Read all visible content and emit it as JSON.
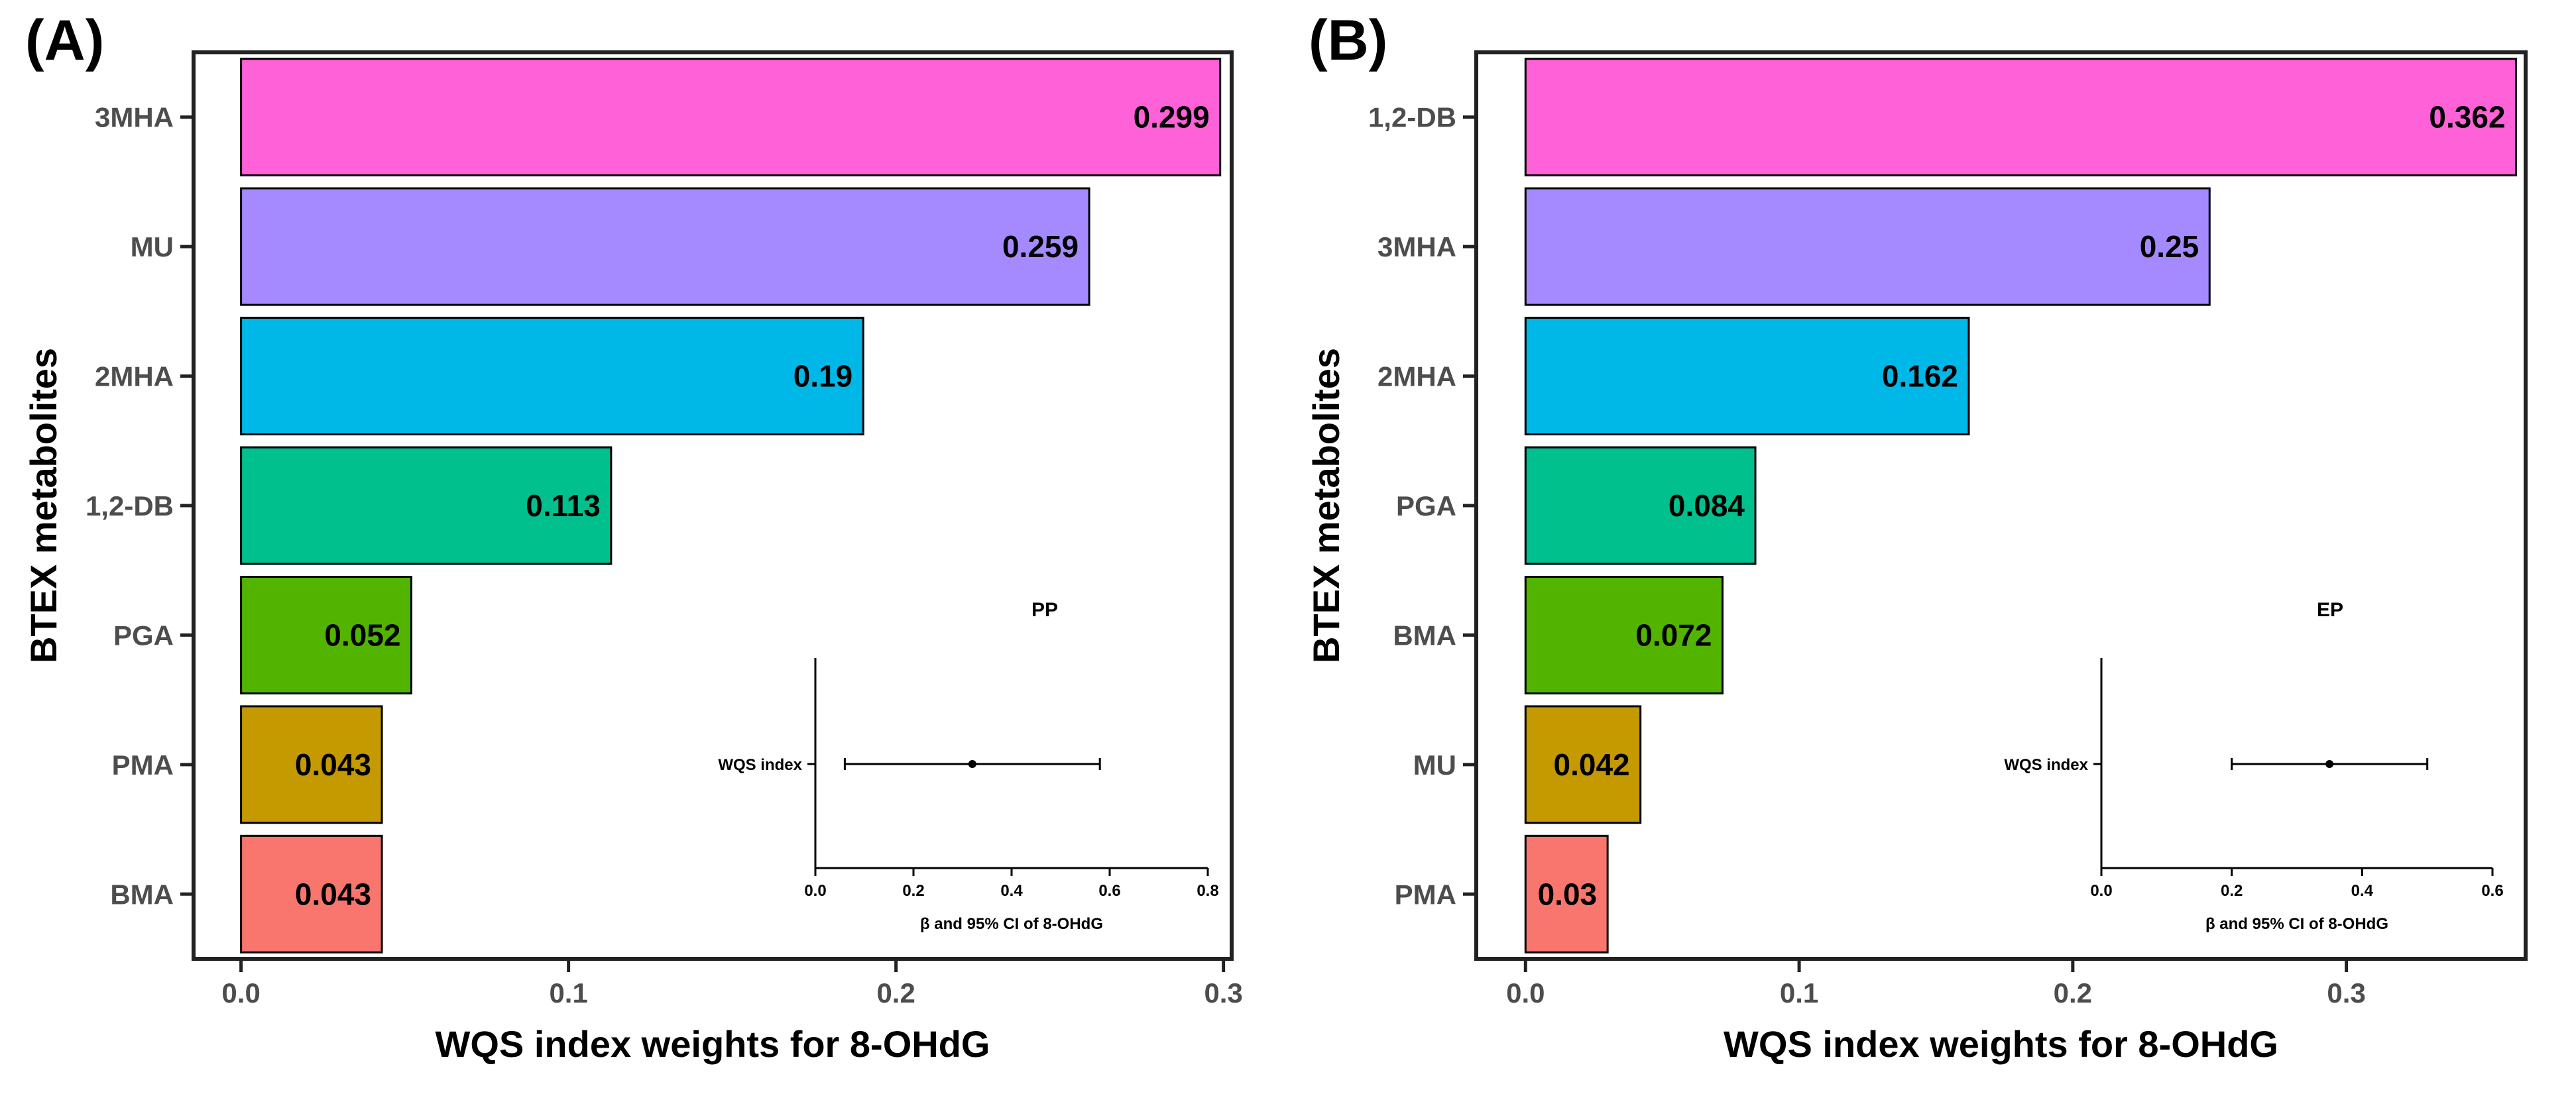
{
  "chart_data": [
    {
      "type": "bar",
      "orientation": "horizontal",
      "panel": "(A)",
      "categories": [
        "3MHA",
        "MU",
        "2MHA",
        "1,2-DB",
        "PGA",
        "PMA",
        "BMA"
      ],
      "values": [
        0.299,
        0.259,
        0.19,
        0.113,
        0.052,
        0.043,
        0.043
      ],
      "value_labels": [
        "0.299",
        "0.259",
        "0.19",
        "0.113",
        "0.052",
        "0.043",
        "0.043"
      ],
      "colors": [
        "#ff61d8",
        "#a58aff",
        "#00b8e7",
        "#00c08d",
        "#53b400",
        "#c49a00",
        "#f8766d"
      ],
      "xlabel": "WQS index weights for 8-OHdG",
      "ylabel": "BTEX metabolites",
      "xlim": [
        -0.0145,
        0.3025
      ],
      "xticks": [
        0.0,
        0.1,
        0.2,
        0.3
      ],
      "xtick_labels": [
        "0.0",
        "0.1",
        "0.2",
        "0.3"
      ],
      "grid": false,
      "inset": {
        "type": "forest",
        "title": "PP",
        "row_label": "WQS index",
        "estimate": 0.32,
        "ci": [
          0.06,
          0.58
        ],
        "xlim": [
          0.0,
          0.8
        ],
        "xticks": [
          0.0,
          0.2,
          0.4,
          0.6,
          0.8
        ],
        "xtick_labels": [
          "0.0",
          "0.2",
          "0.4",
          "0.6",
          "0.8"
        ],
        "xlabel": "β and 95% CI of 8-OHdG"
      }
    },
    {
      "type": "bar",
      "orientation": "horizontal",
      "panel": "(B)",
      "categories": [
        "1,2-DB",
        "3MHA",
        "2MHA",
        "PGA",
        "BMA",
        "MU",
        "PMA"
      ],
      "values": [
        0.362,
        0.25,
        0.162,
        0.084,
        0.072,
        0.042,
        0.03
      ],
      "value_labels": [
        "0.362",
        "0.25",
        "0.162",
        "0.084",
        "0.072",
        "0.042",
        "0.03"
      ],
      "colors": [
        "#ff61d8",
        "#a58aff",
        "#00b8e7",
        "#00c08d",
        "#53b400",
        "#c49a00",
        "#f8766d"
      ],
      "xlabel": "WQS index weights for 8-OHdG",
      "ylabel": "BTEX metabolites",
      "xlim": [
        -0.018,
        0.3655
      ],
      "xticks": [
        0.0,
        0.1,
        0.2,
        0.3
      ],
      "xtick_labels": [
        "0.0",
        "0.1",
        "0.2",
        "0.3"
      ],
      "grid": false,
      "inset": {
        "type": "forest",
        "title": "EP",
        "row_label": "WQS index",
        "estimate": 0.35,
        "ci": [
          0.2,
          0.5
        ],
        "xlim": [
          0.0,
          0.6
        ],
        "xticks": [
          0.0,
          0.2,
          0.4,
          0.6
        ],
        "xtick_labels": [
          "0.0",
          "0.2",
          "0.4",
          "0.6"
        ],
        "xlabel": "β and 95% CI of 8-OHdG"
      }
    }
  ]
}
